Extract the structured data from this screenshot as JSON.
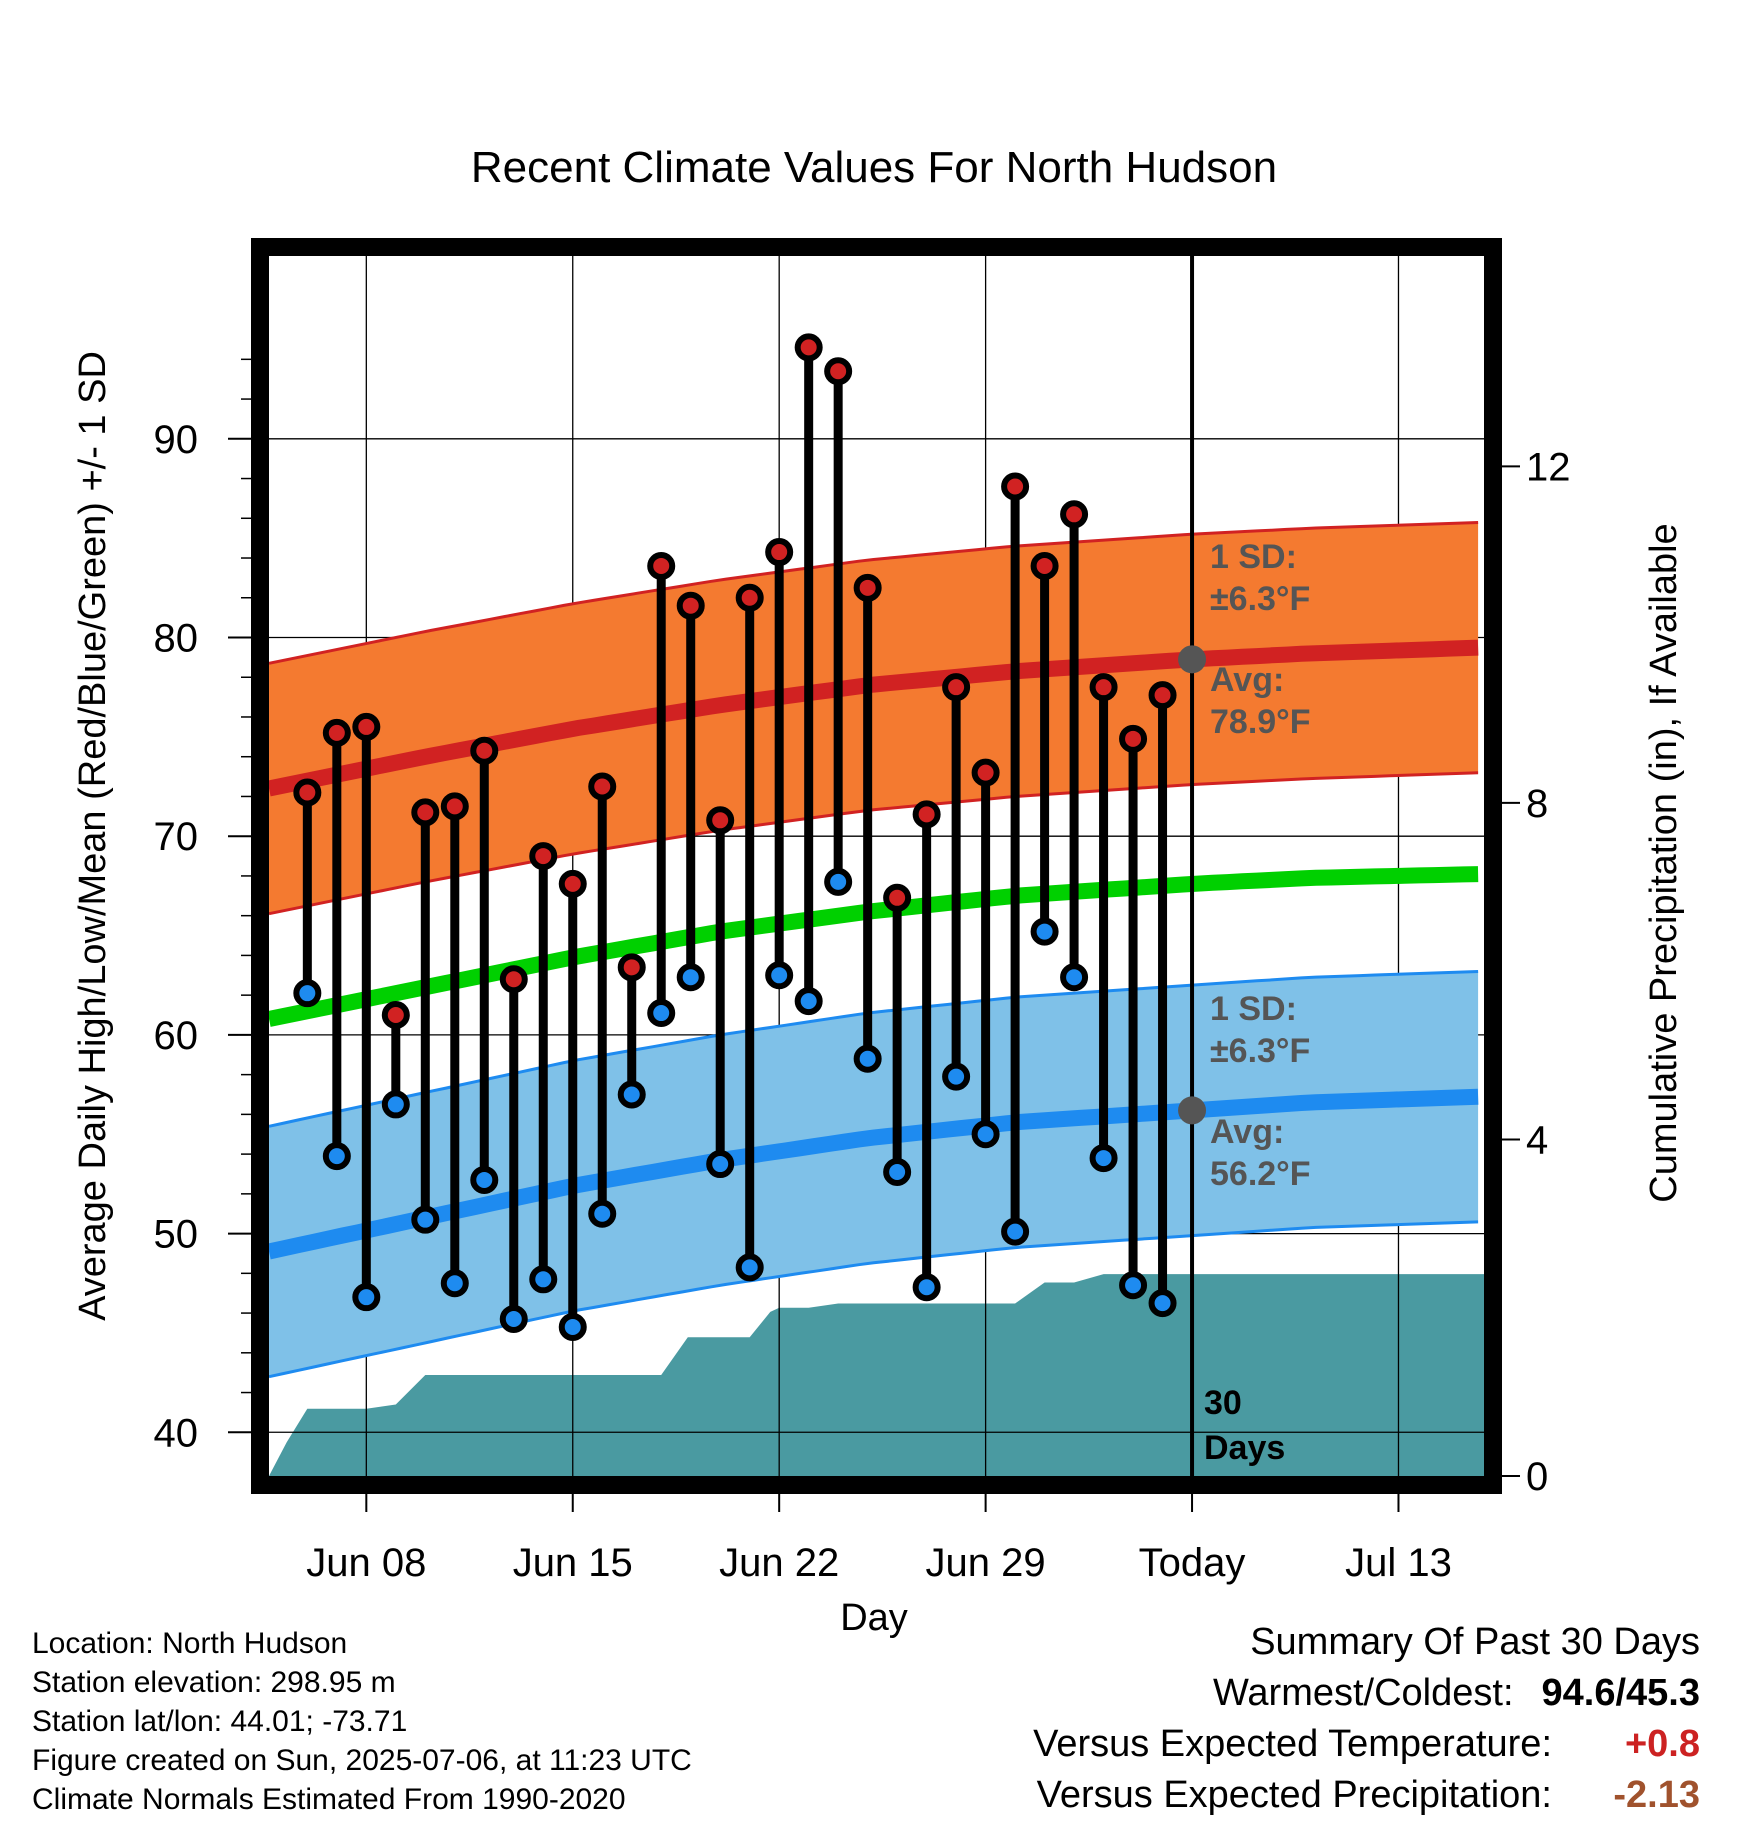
{
  "chart_data": {
    "type": "line",
    "title": "Recent Climate Values For North Hudson",
    "xlabel": "Day",
    "ylabel_left": "Average Daily High/Low/Mean (Red/Blue/Green) +/- 1 SD",
    "ylabel_right": "Cumulative Precipitation (in), If Available",
    "x_tick_labels": [
      "Jun 08",
      "Jun 15",
      "Jun 22",
      "Jun 29",
      "Today",
      "Jul 13"
    ],
    "x_tick_days": [
      8,
      15,
      22,
      29,
      36,
      43
    ],
    "y_left_ticks": [
      40,
      50,
      60,
      70,
      80,
      90
    ],
    "y_right_ticks": [
      0,
      4,
      8,
      12
    ],
    "ylim_left": [
      37.8,
      99.2
    ],
    "ylim_right": [
      0,
      14.5
    ],
    "xlim_days": [
      4.7,
      45.9
    ],
    "today_day": 36,
    "grid": true,
    "normals": {
      "days": [
        4.7,
        10,
        15,
        20,
        25,
        30,
        36,
        40,
        45.9
      ],
      "high_avg": [
        72.4,
        74.0,
        75.4,
        76.6,
        77.6,
        78.3,
        78.9,
        79.2,
        79.5
      ],
      "high_sd": 6.3,
      "low_avg": [
        49.1,
        50.8,
        52.4,
        53.7,
        54.8,
        55.6,
        56.2,
        56.6,
        56.9
      ],
      "low_sd": 6.3,
      "mean_avg": [
        60.8,
        62.4,
        63.9,
        65.2,
        66.2,
        67.0,
        67.6,
        67.9,
        68.1
      ]
    },
    "observations": {
      "days": [
        6,
        7,
        8,
        9,
        10,
        11,
        12,
        13,
        14,
        15,
        16,
        17,
        18,
        19,
        20,
        21,
        22,
        23,
        24,
        25,
        26,
        27,
        28,
        29,
        30,
        31,
        32,
        33,
        34,
        35
      ],
      "highs": [
        72.2,
        75.2,
        75.5,
        61.0,
        71.2,
        71.5,
        74.3,
        62.8,
        69.0,
        67.6,
        72.5,
        63.4,
        83.6,
        81.6,
        70.8,
        82.0,
        84.3,
        94.6,
        93.4,
        82.5,
        66.9,
        71.1,
        77.5,
        73.2,
        87.6,
        83.6,
        86.2,
        77.5,
        74.9,
        77.1
      ],
      "lows": [
        62.1,
        53.9,
        46.8,
        56.5,
        50.7,
        47.5,
        52.7,
        45.7,
        47.7,
        45.3,
        51.0,
        57.0,
        61.1,
        62.9,
        53.5,
        48.3,
        63.0,
        61.7,
        67.7,
        58.8,
        53.1,
        47.3,
        57.9,
        55.0,
        50.1,
        65.2,
        62.9,
        53.8,
        47.4,
        46.5
      ]
    },
    "precipitation": {
      "days": [
        4.7,
        5.3,
        6.0,
        7.0,
        8.0,
        9.0,
        10.0,
        12.0,
        14.0,
        16.0,
        17.0,
        18.0,
        18.9,
        20.0,
        21.0,
        21.7,
        22.0,
        23.0,
        24.0,
        25.0,
        30.0,
        31.0,
        32.0,
        33.0,
        36.0,
        45.9
      ],
      "cumulative": [
        0.0,
        0.4,
        0.8,
        0.8,
        0.8,
        0.85,
        1.2,
        1.2,
        1.2,
        1.2,
        1.2,
        1.2,
        1.65,
        1.65,
        1.65,
        1.95,
        2.0,
        2.0,
        2.05,
        2.05,
        2.05,
        2.3,
        2.3,
        2.4,
        2.4,
        2.4
      ]
    },
    "annotations": {
      "high_sd_line1": "1 SD:",
      "high_sd_line2": "±6.3°F",
      "high_avg_line1": "Avg:",
      "high_avg_line2": "78.9°F",
      "low_sd_line1": "1 SD:",
      "low_sd_line2": "±6.3°F",
      "low_avg_line1": "Avg:",
      "low_avg_line2": "56.2°F",
      "days_line1": "30",
      "days_line2": "Days"
    },
    "colors": {
      "high_band": "#f47a30",
      "high_line": "#d12222",
      "low_band": "#7fc1e8",
      "low_line": "#1e8bf0",
      "mean_line": "#00d000",
      "precip": "#4a9aa1",
      "high_marker": "#d12222",
      "low_marker": "#1e8bf0",
      "annotation": "#555555"
    }
  },
  "footer": {
    "location": "Location: North Hudson",
    "elevation": "Station elevation: 298.95 m",
    "latlon": "Station lat/lon: 44.01; -73.71",
    "created": "Figure created on Sun, 2025-07-06, at 11:23 UTC",
    "normals": "Climate Normals Estimated From 1990-2020"
  },
  "summary": {
    "heading": "Summary Of Past 30 Days",
    "warm_cold_label": "Warmest/Coldest:",
    "warm_cold_value": "94.6/45.3",
    "temp_label": "Versus Expected Temperature:",
    "temp_value": "+0.8",
    "precip_label": "Versus Expected Precipitation:",
    "precip_value": "-2.13"
  }
}
